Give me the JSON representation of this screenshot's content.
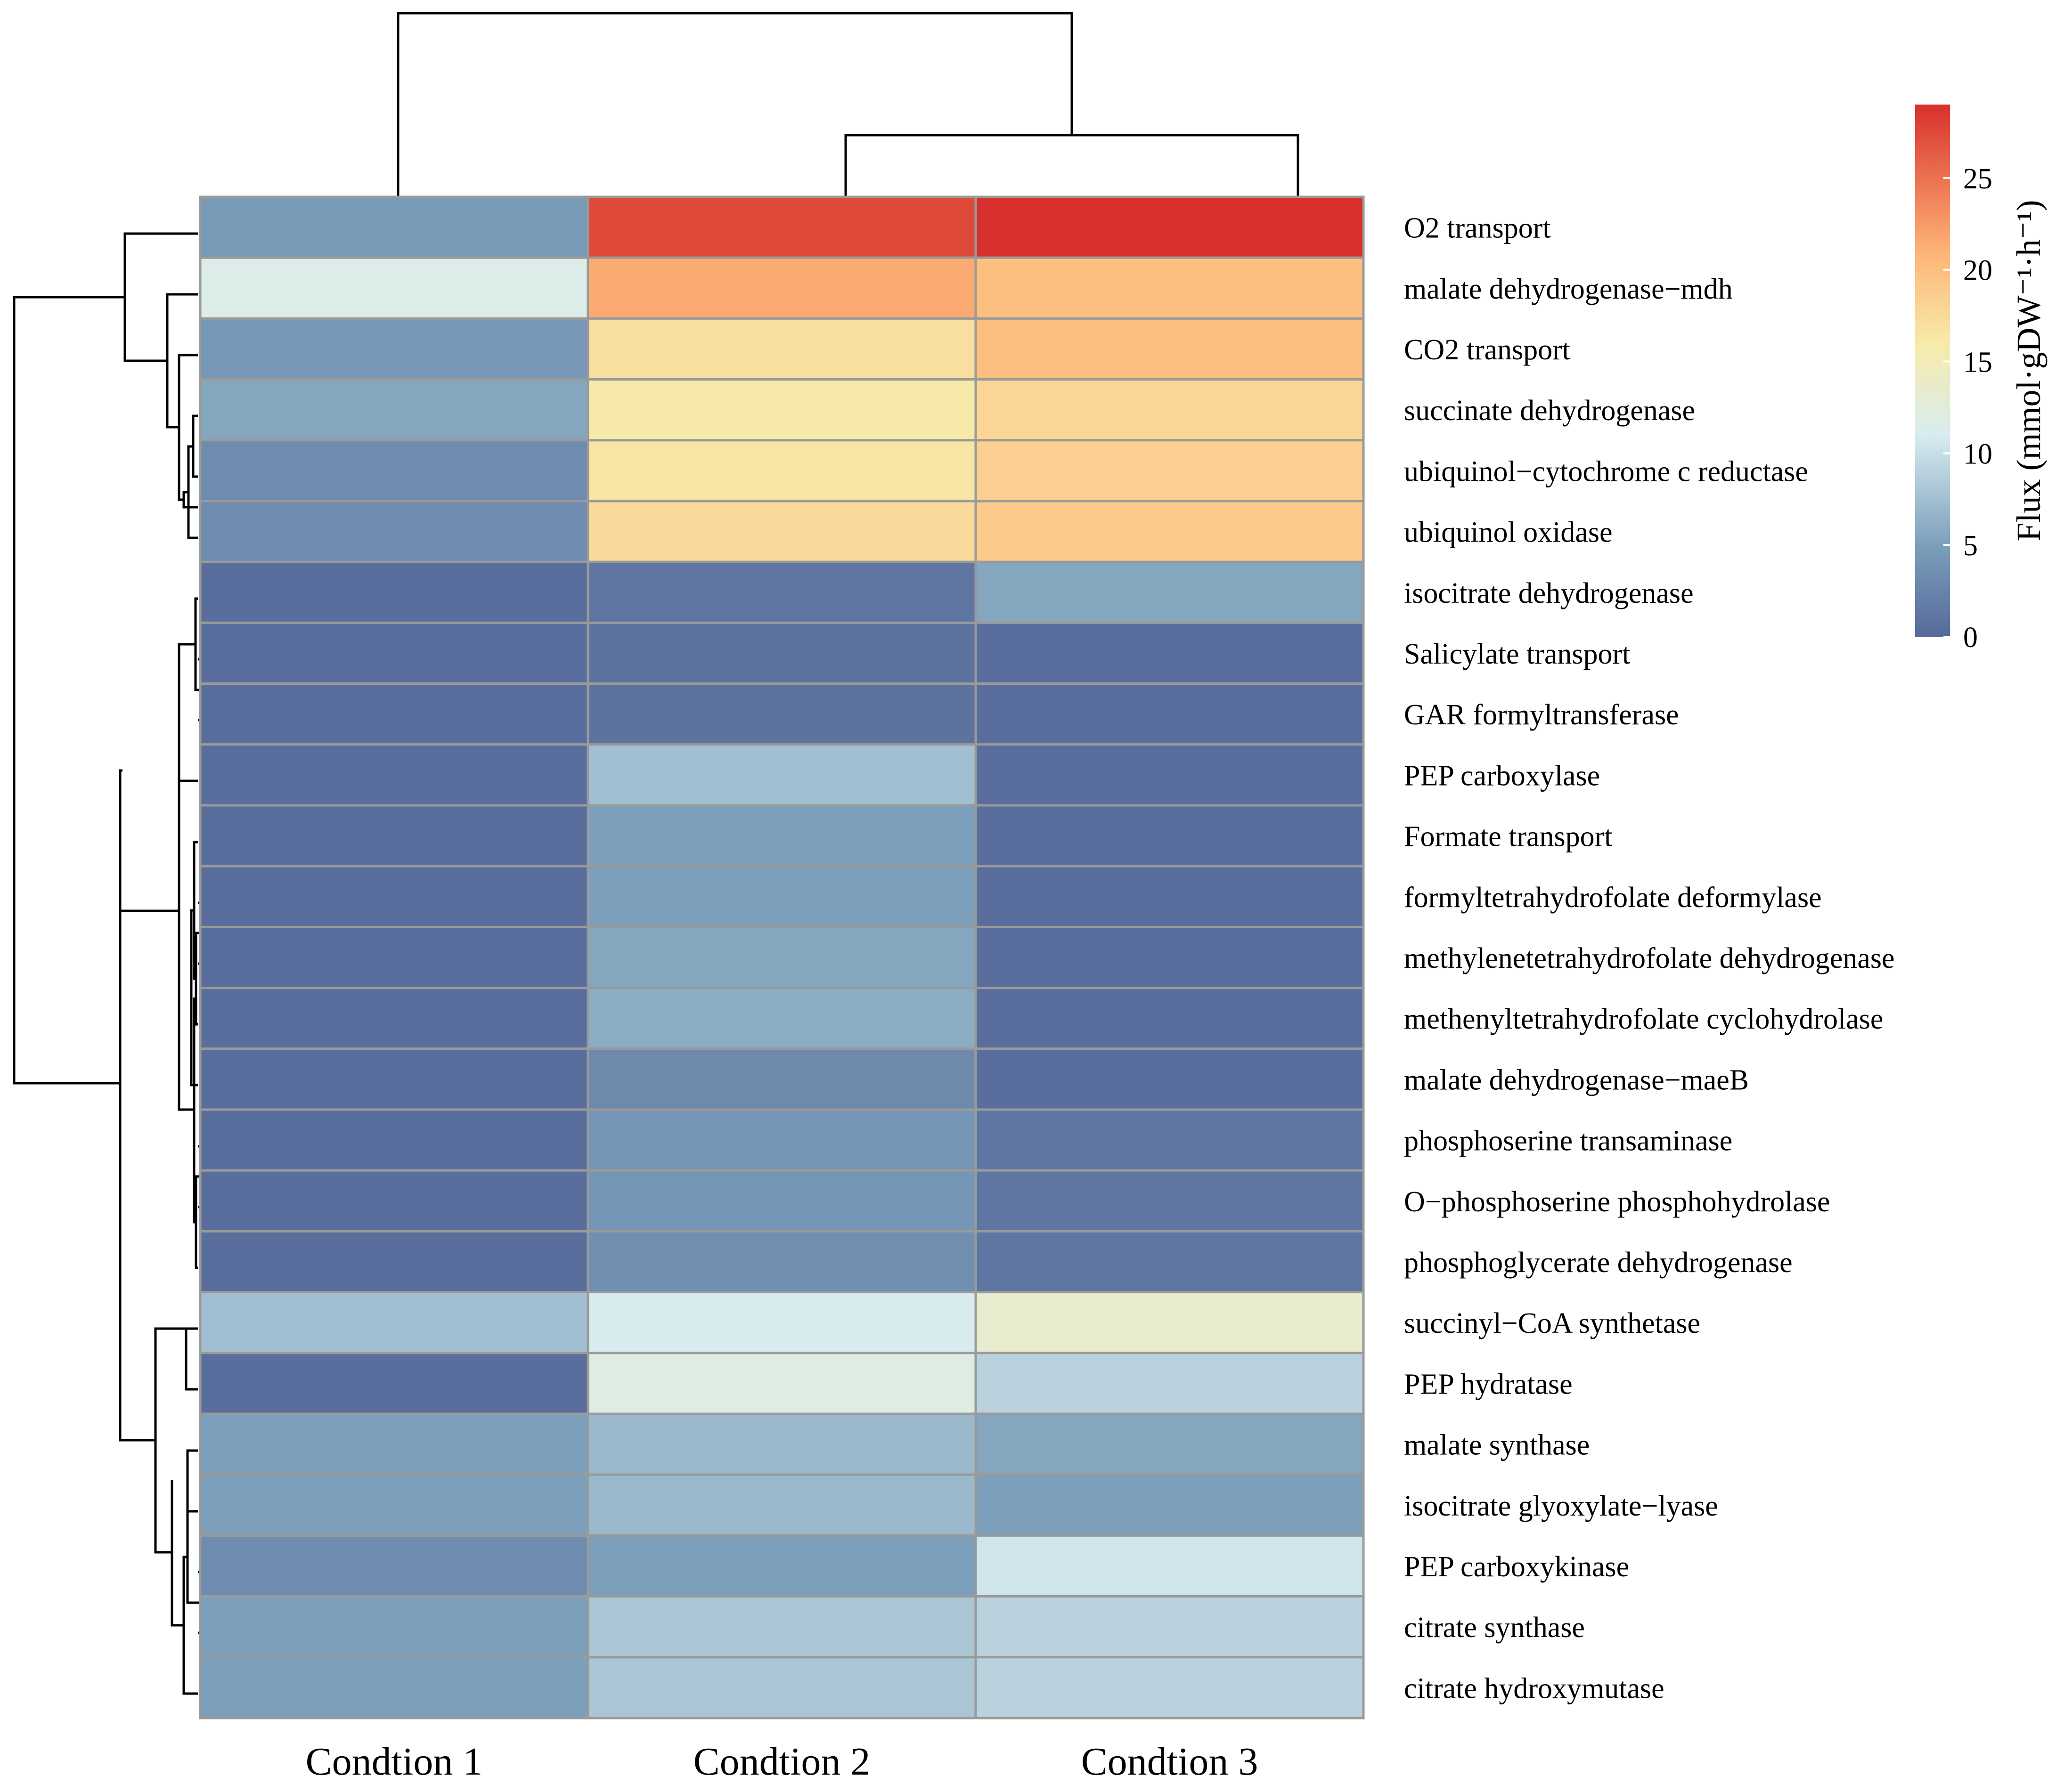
{
  "chart_data": {
    "type": "heatmap",
    "title": "",
    "columns": [
      "Condtion 1",
      "Condtion 2",
      "Condtion 3"
    ],
    "rows": [
      "O2 transport",
      "malate dehydrogenase−mdh",
      "CO2 transport",
      "succinate dehydrogenase",
      "ubiquinol−cytochrome c reductase",
      "ubiquinol oxidase",
      "isocitrate dehydrogenase",
      "Salicylate transport",
      "GAR formyltransferase",
      "PEP carboxylase",
      "Formate transport",
      "formyltetrahydrofolate deformylase",
      "methylenetetrahydrofolate dehydrogenase",
      "methenyltetrahydrofolate cyclohydrolase",
      "malate dehydrogenase−maeB",
      "phosphoserine transaminase",
      "O−phosphoserine phosphohydrolase",
      "phosphoglycerate dehydrogenase",
      "succinyl−CoA synthetase",
      "PEP hydratase",
      "malate synthase",
      "isocitrate glyoxylate−lyase",
      "PEP carboxykinase",
      "citrate synthase",
      "citrate hydroxymutase"
    ],
    "values": [
      [
        4.5,
        27.5,
        29.0
      ],
      [
        11.5,
        21.5,
        20.0
      ],
      [
        4.2,
        17.0,
        20.0
      ],
      [
        5.5,
        16.0,
        18.0
      ],
      [
        3.2,
        16.5,
        18.5
      ],
      [
        3.2,
        17.5,
        19.0
      ],
      [
        0.5,
        1.2,
        5.5
      ],
      [
        0.5,
        0.8,
        0.5
      ],
      [
        0.5,
        0.8,
        0.5
      ],
      [
        0.5,
        7.5,
        0.5
      ],
      [
        0.5,
        5.0,
        0.5
      ],
      [
        0.5,
        5.0,
        0.5
      ],
      [
        0.5,
        5.5,
        0.5
      ],
      [
        0.5,
        6.0,
        0.5
      ],
      [
        0.5,
        3.0,
        0.5
      ],
      [
        0.5,
        4.0,
        1.2
      ],
      [
        0.5,
        4.0,
        1.2
      ],
      [
        0.5,
        3.5,
        1.2
      ],
      [
        7.5,
        11.0,
        13.5
      ],
      [
        0.5,
        12.0,
        9.0
      ],
      [
        5.0,
        7.0,
        5.5
      ],
      [
        5.0,
        7.0,
        5.0
      ],
      [
        3.2,
        5.0,
        10.5
      ],
      [
        5.0,
        8.0,
        9.0
      ],
      [
        5.0,
        8.0,
        9.0
      ]
    ],
    "colorbar": {
      "label": "Flux (mmol·gDW⁻¹·h⁻¹)",
      "min": 0,
      "max": 29,
      "ticks": [
        0,
        5,
        10,
        15,
        20,
        25
      ],
      "colors": [
        "#56699a",
        "#7b9fba",
        "#d8ecf0",
        "#f7ebaa",
        "#feb577",
        "#d8302c"
      ]
    },
    "row_dendrogram": true,
    "column_dendrogram": true,
    "column_clustering": "((Condtion 2, Condtion 3), Condtion 1)"
  }
}
